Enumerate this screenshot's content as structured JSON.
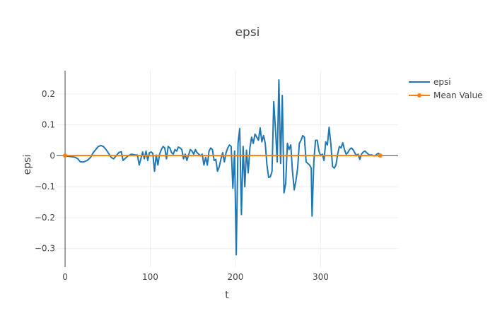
{
  "chart_data": {
    "type": "line",
    "title": "epsi",
    "xlabel": "t",
    "ylabel": "epsi",
    "xlim": [
      -10,
      391
    ],
    "ylim": [
      -0.36,
      0.275
    ],
    "x_ticks": [
      0,
      100,
      200,
      300
    ],
    "x_tick_labels": [
      "0",
      "100",
      "200",
      "300"
    ],
    "y_ticks": [
      -0.3,
      -0.2,
      -0.1,
      0,
      0.1,
      0.2
    ],
    "y_tick_labels": [
      "−0.3",
      "−0.2",
      "−0.1",
      "0",
      "0.1",
      "0.2"
    ],
    "grid": true,
    "legend_position": "top-right",
    "series": [
      {
        "name": "epsi",
        "color": "#1f77b4",
        "mode": "lines",
        "points": [
          [
            0,
            0
          ],
          [
            4,
            -0.002
          ],
          [
            8,
            -0.003
          ],
          [
            12,
            -0.005
          ],
          [
            15,
            -0.01
          ],
          [
            18,
            -0.02
          ],
          [
            22,
            -0.02
          ],
          [
            26,
            -0.015
          ],
          [
            30,
            -0.005
          ],
          [
            33,
            0.01
          ],
          [
            36,
            0.02
          ],
          [
            39,
            0.03
          ],
          [
            42,
            0.033
          ],
          [
            45,
            0.03
          ],
          [
            48,
            0.02
          ],
          [
            51,
            0.008
          ],
          [
            54,
            -0.005
          ],
          [
            57,
            -0.01
          ],
          [
            60,
            0
          ],
          [
            63,
            0.01
          ],
          [
            66,
            0.013
          ],
          [
            68,
            -0.015
          ],
          [
            70,
            -0.01
          ],
          [
            74,
            0
          ],
          [
            78,
            0.005
          ],
          [
            82,
            0.003
          ],
          [
            85,
            0.002
          ],
          [
            87,
            -0.03
          ],
          [
            89,
            -0.01
          ],
          [
            91,
            0.012
          ],
          [
            93,
            -0.01
          ],
          [
            95,
            0.015
          ],
          [
            97,
            -0.015
          ],
          [
            99,
            0.01
          ],
          [
            101,
            0.012
          ],
          [
            103,
            0.008
          ],
          [
            105,
            -0.05
          ],
          [
            107,
            0.002
          ],
          [
            109,
            -0.03
          ],
          [
            111,
            0.005
          ],
          [
            113,
            0.02
          ],
          [
            115,
            0.03
          ],
          [
            117,
            0.025
          ],
          [
            119,
            -0.01
          ],
          [
            121,
            0.03
          ],
          [
            123,
            0.025
          ],
          [
            125,
            0.01
          ],
          [
            127,
            0.005
          ],
          [
            129,
            0.02
          ],
          [
            131,
            0.015
          ],
          [
            133,
            0.028
          ],
          [
            135,
            0.025
          ],
          [
            137,
            0.02
          ],
          [
            139,
            -0.01
          ],
          [
            141,
            0.005
          ],
          [
            143,
            -0.015
          ],
          [
            145,
            0.002
          ],
          [
            147,
            0.02
          ],
          [
            149,
            0.015
          ],
          [
            151,
            0.005
          ],
          [
            153,
            0.02
          ],
          [
            155,
            0.01
          ],
          [
            157,
            0.005
          ],
          [
            159,
            0
          ],
          [
            161,
            0.005
          ],
          [
            163,
            -0.03
          ],
          [
            165,
            -0.005
          ],
          [
            167,
            -0.03
          ],
          [
            169,
            0.015
          ],
          [
            171,
            0.025
          ],
          [
            173,
            0.02
          ],
          [
            175,
            -0.015
          ],
          [
            177,
            -0.012
          ],
          [
            179,
            -0.05
          ],
          [
            181,
            -0.035
          ],
          [
            183,
            -0.01
          ],
          [
            185,
            0.01
          ],
          [
            187,
            -0.02
          ],
          [
            189,
            0.01
          ],
          [
            191,
            0.025
          ],
          [
            193,
            0.035
          ],
          [
            195,
            0.03
          ],
          [
            197,
            -0.105
          ],
          [
            199,
            0.015
          ],
          [
            201,
            -0.32
          ],
          [
            203,
            0.04
          ],
          [
            205,
            0.088
          ],
          [
            207,
            -0.19
          ],
          [
            209,
            0.03
          ],
          [
            211,
            -0.1
          ],
          [
            213,
            0.018
          ],
          [
            215,
            -0.055
          ],
          [
            217,
            0.025
          ],
          [
            219,
            0.06
          ],
          [
            221,
            0.04
          ],
          [
            223,
            0.07
          ],
          [
            225,
            0.06
          ],
          [
            227,
            0.05
          ],
          [
            229,
            0.09
          ],
          [
            231,
            0.045
          ],
          [
            233,
            0.065
          ],
          [
            235,
            0.04
          ],
          [
            237,
            -0.03
          ],
          [
            239,
            -0.07
          ],
          [
            241,
            -0.068
          ],
          [
            243,
            -0.05
          ],
          [
            245,
            0.175
          ],
          [
            247,
            0.085
          ],
          [
            249,
            -0.02
          ],
          [
            251,
            0.245
          ],
          [
            253,
            -0.025
          ],
          [
            255,
            0.195
          ],
          [
            257,
            -0.12
          ],
          [
            259,
            -0.09
          ],
          [
            261,
            0.04
          ],
          [
            263,
            0.02
          ],
          [
            265,
            0.035
          ],
          [
            267,
            -0.05
          ],
          [
            269,
            -0.11
          ],
          [
            271,
            -0.08
          ],
          [
            273,
            -0.04
          ],
          [
            275,
            0.04
          ],
          [
            277,
            0.05
          ],
          [
            279,
            0.065
          ],
          [
            281,
            0.06
          ],
          [
            283,
            -0.02
          ],
          [
            285,
            -0.025
          ],
          [
            287,
            -0.03
          ],
          [
            289,
            -0.04
          ],
          [
            290,
            -0.195
          ],
          [
            292,
            -0.02
          ],
          [
            294,
            0.05
          ],
          [
            296,
            0.05
          ],
          [
            298,
            0.015
          ],
          [
            300,
            0
          ],
          [
            302,
            0.005
          ],
          [
            304,
            -0.015
          ],
          [
            306,
            0.045
          ],
          [
            308,
            0.035
          ],
          [
            310,
            0.092
          ],
          [
            312,
            0.04
          ],
          [
            314,
            -0.035
          ],
          [
            316,
            -0.04
          ],
          [
            318,
            -0.03
          ],
          [
            320,
            0.005
          ],
          [
            322,
            0.03
          ],
          [
            324,
            0.025
          ],
          [
            326,
            0.042
          ],
          [
            328,
            0.02
          ],
          [
            330,
            0.005
          ],
          [
            332,
            0.01
          ],
          [
            334,
            0.02
          ],
          [
            336,
            0.025
          ],
          [
            338,
            0.02
          ],
          [
            340,
            0.01
          ],
          [
            342,
            0
          ],
          [
            344,
            0.005
          ],
          [
            346,
            -0.012
          ],
          [
            348,
            0.005
          ],
          [
            350,
            0.012
          ],
          [
            352,
            0.015
          ],
          [
            354,
            0.01
          ],
          [
            356,
            0.005
          ],
          [
            358,
            0.002
          ],
          [
            360,
            0.003
          ],
          [
            362,
            0
          ],
          [
            364,
            0
          ],
          [
            366,
            0.005
          ],
          [
            368,
            0.008
          ],
          [
            370,
            0.002
          ]
        ]
      },
      {
        "name": "Mean Value",
        "color": "#ff7f0e",
        "mode": "lines+markers",
        "points": [
          [
            0,
            0.0007
          ],
          [
            370,
            0.0007
          ]
        ]
      }
    ]
  }
}
